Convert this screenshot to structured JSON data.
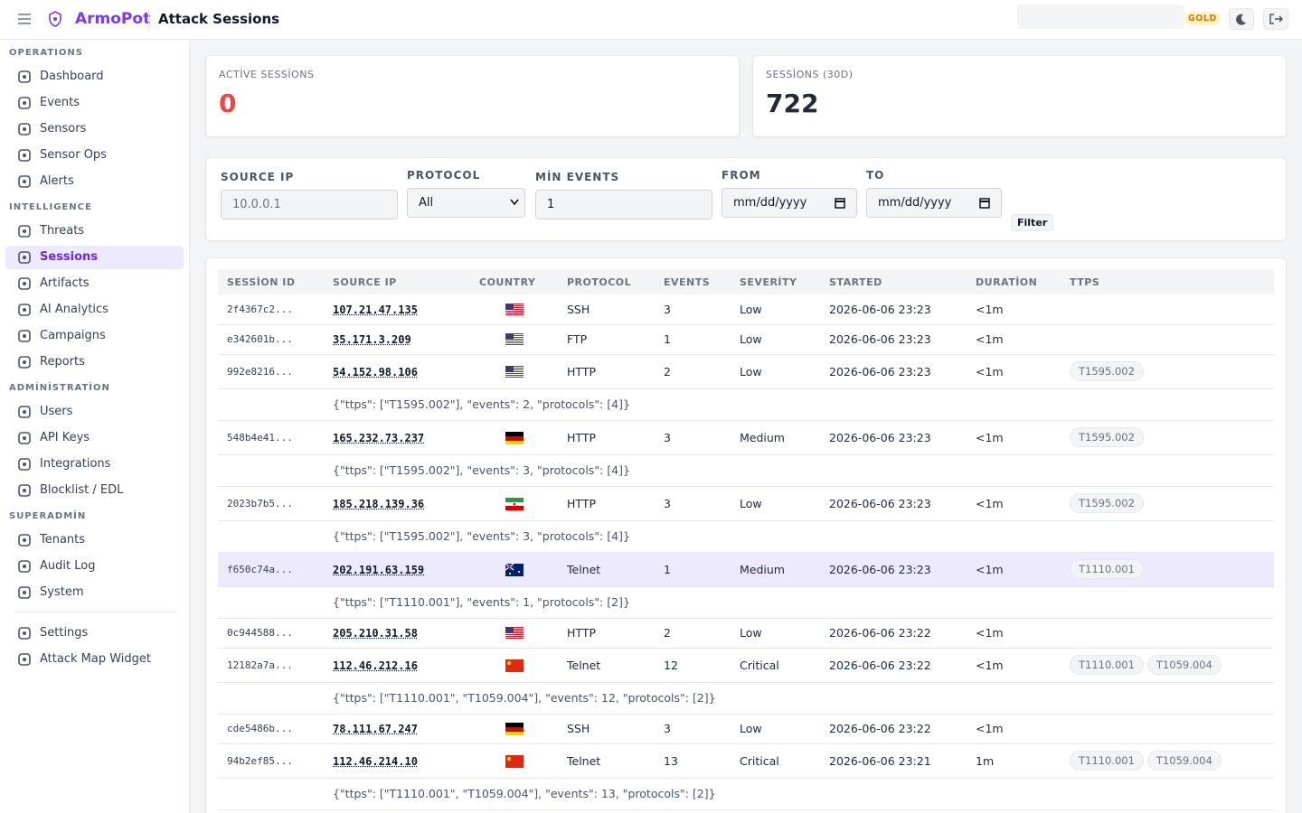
{
  "header": {
    "brand": "ArmoPot",
    "title": "Attack Sessions",
    "badge": "GOLD"
  },
  "sidebar": {
    "sections": [
      {
        "heading": "OPERATIONS",
        "items": [
          "Dashboard",
          "Events",
          "Sensors",
          "Sensor Ops",
          "Alerts"
        ]
      },
      {
        "heading": "INTELLIGENCE",
        "items": [
          "Threats",
          "Sessions",
          "Artifacts",
          "AI Analytics",
          "Campaigns",
          "Reports"
        ]
      },
      {
        "heading": "ADMİNİSTRATİON",
        "items": [
          "Users",
          "API Keys",
          "Integrations",
          "Blocklist / EDL"
        ]
      },
      {
        "heading": "SUPERADMİN",
        "items": [
          "Tenants",
          "Audit Log",
          "System"
        ]
      }
    ],
    "footer_items": [
      "Settings",
      "Attack Map Widget"
    ]
  },
  "stats": [
    {
      "label": "ACTİVE SESSİONS",
      "value": 0
    },
    {
      "label": "SESSİONS (30D)",
      "value": 722
    }
  ],
  "filters": {
    "fields": [
      {
        "label": "SOURCE IP",
        "placeholder": "10.0.0.1"
      },
      {
        "label": "PROTOCOL",
        "value": "All"
      },
      {
        "label": "MİN EVENTS",
        "value": "1"
      },
      {
        "label": "FROM",
        "placeholder": "mm/dd/yyyy"
      },
      {
        "label": "TO",
        "placeholder": "mm/dd/yyyy"
      }
    ],
    "button": "Filter"
  },
  "table": {
    "columns": [
      "SESSİON ID",
      "SOURCE IP",
      "COUNTRY",
      "PROTOCOL",
      "EVENTS",
      "SEVERİTY",
      "STARTED",
      "DURATİON",
      "TTPS"
    ],
    "rows": [
      {
        "id": "2f4367c2...",
        "ip": "107.21.47.135",
        "protocol": "SSH",
        "events": 3,
        "severity": "Low",
        "started": "2026-06-06 23:23",
        "duration": "<1m",
        "ttps": []
      },
      {
        "id": "e342601b...",
        "ip": "35.171.3.209",
        "protocol": "FTP",
        "events": 1,
        "severity": "Low",
        "started": "2026-06-06 23:23",
        "duration": "<1m",
        "ttps": []
      },
      {
        "id": "992e8216...",
        "ip": "54.152.98.106",
        "protocol": "HTTP",
        "events": 2,
        "severity": "Low",
        "started": "2026-06-06 23:23",
        "duration": "<1m",
        "ttps": [
          "T1595.002"
        ],
        "detail": "{\"ttps\": [\"T1595.002\"], \"events\": 2, \"protocols\": [4]}"
      },
      {
        "id": "548b4e41...",
        "ip": "165.232.73.237",
        "protocol": "HTTP",
        "events": 3,
        "severity": "Medium",
        "started": "2026-06-06 23:23",
        "duration": "<1m",
        "ttps": [
          "T1595.002"
        ],
        "detail": "{\"ttps\": [\"T1595.002\"], \"events\": 3, \"protocols\": [4]}"
      },
      {
        "id": "2023b7b5...",
        "ip": "185.218.139.36",
        "protocol": "HTTP",
        "events": 3,
        "severity": "Low",
        "started": "2026-06-06 23:23",
        "duration": "<1m",
        "ttps": [
          "T1595.002"
        ],
        "detail": "{\"ttps\": [\"T1595.002\"], \"events\": 3, \"protocols\": [4]}"
      },
      {
        "id": "f650c74a...",
        "ip": "202.191.63.159",
        "protocol": "Telnet",
        "events": 1,
        "severity": "Medium",
        "started": "2026-06-06 23:23",
        "duration": "<1m",
        "ttps": [
          "T1110.001"
        ],
        "detail": "{\"ttps\": [\"T1110.001\"], \"events\": 1, \"protocols\": [2]}"
      },
      {
        "id": "0c944588...",
        "ip": "205.210.31.58",
        "protocol": "HTTP",
        "events": 2,
        "severity": "Low",
        "started": "2026-06-06 23:22",
        "duration": "<1m",
        "ttps": []
      },
      {
        "id": "12182a7a...",
        "ip": "112.46.212.16",
        "protocol": "Telnet",
        "events": 12,
        "severity": "Critical",
        "started": "2026-06-06 23:22",
        "duration": "<1m",
        "ttps": [
          "T1110.001",
          "T1059.004"
        ],
        "detail": "{\"ttps\": [\"T1110.001\", \"T1059.004\"], \"events\": 12, \"protocols\": [2]}"
      },
      {
        "id": "cde5486b...",
        "ip": "78.111.67.247",
        "protocol": "SSH",
        "events": 3,
        "severity": "Low",
        "started": "2026-06-06 23:22",
        "duration": "<1m",
        "ttps": []
      },
      {
        "id": "94b2ef85...",
        "ip": "112.46.214.10",
        "protocol": "Telnet",
        "events": 13,
        "severity": "Critical",
        "started": "2026-06-06 23:21",
        "duration": "1m",
        "ttps": [
          "T1110.001",
          "T1059.004"
        ],
        "detail": "{\"ttps\": [\"T1110.001\", \"T1059.004\"], \"events\": 13, \"protocols\": [2]}"
      }
    ]
  }
}
